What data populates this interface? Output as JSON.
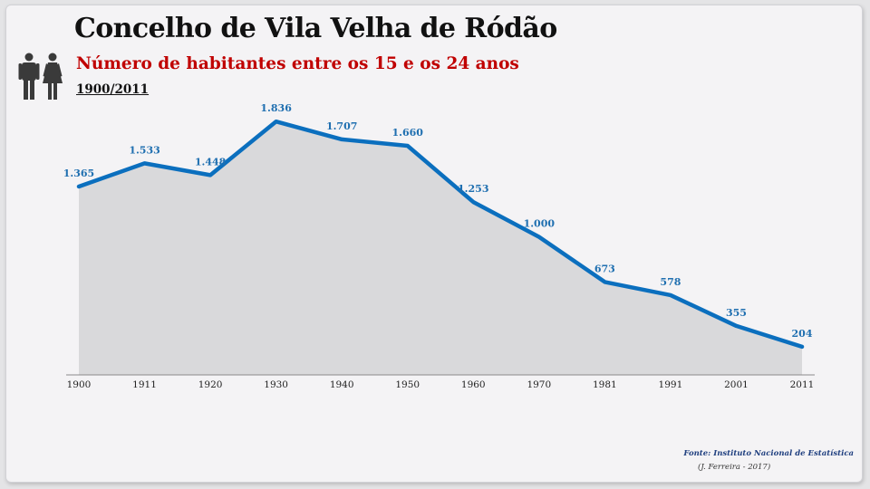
{
  "header": {
    "title": "Concelho de Vila Velha de Ródão",
    "subtitle": "Número de habitantes entre os 15 e os 24 anos",
    "period": "1900/2011",
    "icon": "male-female-people-icon"
  },
  "footer": {
    "source": "Fonte: Instituto Nacional de Estatística",
    "author": "(J. Ferreira - 2017)"
  },
  "colors": {
    "line": "#0b6fbe",
    "area": "#d9d9db",
    "label": "#1f6fb0",
    "subtitle": "#c00000"
  },
  "chart_data": {
    "type": "area",
    "title": "Número de habitantes entre os 15 e os 24 anos",
    "categories": [
      "1900",
      "1911",
      "1920",
      "1930",
      "1940",
      "1950",
      "1960",
      "1970",
      "1981",
      "1991",
      "2001",
      "2011"
    ],
    "series": [
      {
        "values": [
          1365,
          1533,
          1448,
          1836,
          1707,
          1660,
          1253,
          1000,
          673,
          578,
          355,
          204
        ],
        "labels": [
          "1.365",
          "1.533",
          "1.448",
          "1.836",
          "1.707",
          "1.660",
          "1.253",
          "1.000",
          "673",
          "578",
          "355",
          "204"
        ]
      }
    ],
    "ylim": [
      0,
      2100
    ],
    "grid": false,
    "legend": "none",
    "data_labels": true
  }
}
